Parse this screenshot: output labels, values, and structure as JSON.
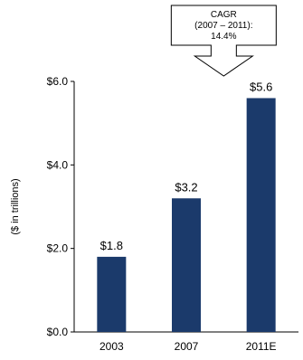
{
  "chart_data": {
    "type": "bar",
    "categories": [
      "2003",
      "2007",
      "2011E"
    ],
    "values": [
      1.8,
      3.2,
      5.6
    ],
    "data_labels": [
      "$1.8",
      "$3.2",
      "$5.6"
    ],
    "ylabel": "($ in trillions)",
    "ylim": [
      0,
      6
    ],
    "y_ticks": [
      0,
      2,
      4,
      6
    ],
    "y_tick_labels": [
      "$0.0",
      "$2.0",
      "$4.0",
      "$6.0"
    ],
    "bar_color": "#1b3a6b",
    "grid": false,
    "annotation": {
      "lines": [
        "CAGR",
        "(2007 – 2011):",
        "14.4%"
      ],
      "shape": "down-arrow callout",
      "between": [
        "2007",
        "2011E"
      ]
    }
  }
}
